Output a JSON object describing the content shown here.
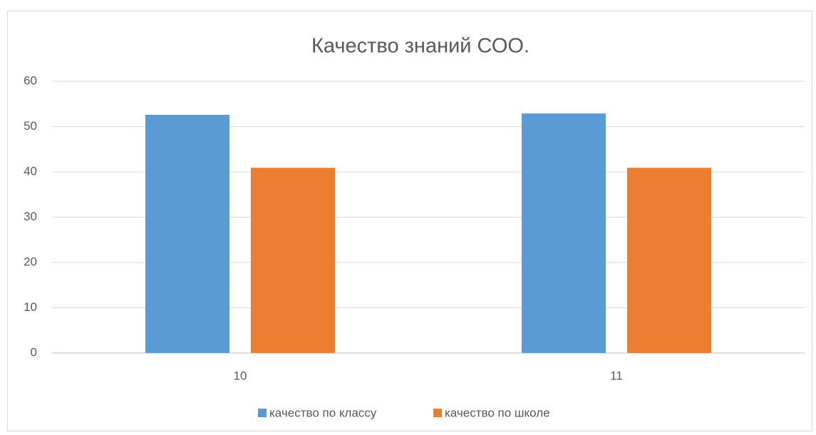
{
  "chart_data": {
    "type": "bar",
    "title": "Качество знаний СОО.",
    "categories": [
      "10",
      "11"
    ],
    "series": [
      {
        "name": "качество по классу",
        "color": "#5b9bd5",
        "values": [
          52.6,
          52.9
        ]
      },
      {
        "name": "качество по школе",
        "color": "#ed7d31",
        "values": [
          40.9,
          40.9
        ]
      }
    ],
    "ylim": [
      0,
      60
    ],
    "yticks": [
      0,
      10,
      20,
      30,
      40,
      50,
      60
    ],
    "grid": true,
    "legend": "bottom"
  }
}
